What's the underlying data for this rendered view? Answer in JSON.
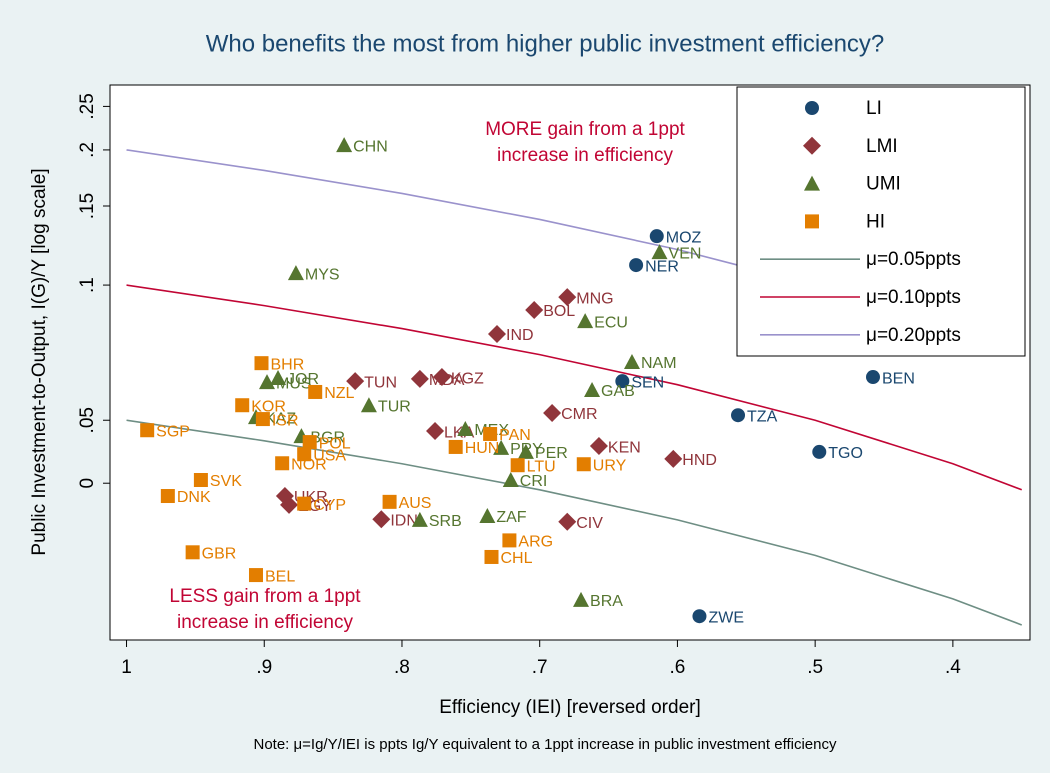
{
  "chart_data": {
    "type": "scatter",
    "title": "Who benefits the most from higher public investment efficiency?",
    "x_label": "Efficiency (IEI) [reversed order]",
    "y_label": "Public Investment-to-Output, I(G)/Y [log scale]",
    "note": "Note: μ=Ig/Y/IEI is ppts Ig/Y equivalent to a 1ppt increase in public investment efficiency",
    "annotations": [
      {
        "lines": [
          "MORE gain from a 1ppt",
          "increase in efficiency"
        ],
        "color": "#c10534"
      },
      {
        "lines": [
          "LESS gain from  a 1ppt",
          "increase in efficiency"
        ],
        "color": "#c10534"
      }
    ],
    "xlim": [
      1.012,
      0.344
    ],
    "xticks": [
      1,
      {
        "value": 0.9,
        "label": ".9"
      },
      {
        "value": 0.8,
        "label": ".8"
      },
      {
        "value": 0.7,
        "label": ".7"
      },
      {
        "value": 0.6,
        "label": ".6"
      },
      {
        "value": 0.5,
        "label": ".5"
      },
      {
        "value": 0.4,
        "label": ".4"
      }
    ],
    "ylim": [
      0.0162,
      0.279
    ],
    "yscale": "log",
    "yticks": [
      {
        "value": 0.0362,
        "label": "0"
      },
      {
        "value": 0.05,
        "label": ".05"
      },
      {
        "value": 0.1,
        "label": ".1"
      },
      {
        "value": 0.15,
        "label": ".15"
      },
      {
        "value": 0.2,
        "label": ".2"
      },
      {
        "value": 0.25,
        "label": ".25"
      }
    ],
    "grid": false,
    "legend": "top-right",
    "series": [
      {
        "name": "LI",
        "color": "#1a476f",
        "marker": "circle",
        "labels": [
          "MOZ",
          "NER",
          "SEN",
          "BEN",
          "TZA",
          "TGO",
          "ZWE"
        ],
        "x": [
          0.615,
          0.63,
          0.64,
          0.458,
          0.556,
          0.497,
          0.584
        ],
        "values": [
          0.1285,
          0.1108,
          0.0611,
          0.0624,
          0.0513,
          0.0425,
          0.0183
        ]
      },
      {
        "name": "LMI",
        "color": "#90353b",
        "marker": "diamond",
        "labels": [
          "MNG",
          "BOL",
          "IND",
          "TUN",
          "MDA",
          "KGZ",
          "CMR",
          "LKA",
          "KEN",
          "HND",
          "UKR",
          "EGY",
          "IDN",
          "CIV"
        ],
        "x": [
          0.68,
          0.704,
          0.731,
          0.834,
          0.787,
          0.771,
          0.691,
          0.776,
          0.657,
          0.603,
          0.885,
          0.882,
          0.815,
          0.68
        ],
        "values": [
          0.094,
          0.088,
          0.0778,
          0.0611,
          0.0618,
          0.0624,
          0.0519,
          0.0473,
          0.0438,
          0.041,
          0.0339,
          0.0324,
          0.0301,
          0.0297
        ]
      },
      {
        "name": "UMI",
        "color": "#55752f",
        "marker": "triangle",
        "labels": [
          "CHN",
          "MYS",
          "VEN",
          "ECU",
          "NAM",
          "GAB",
          "JOR",
          "MUS",
          "TUR",
          "KAZ",
          "BGR",
          "MEX",
          "PRY",
          "PER",
          "CRI",
          "ZAF",
          "SRB",
          "BRA"
        ],
        "x": [
          0.842,
          0.877,
          0.613,
          0.667,
          0.633,
          0.662,
          0.89,
          0.898,
          0.824,
          0.906,
          0.873,
          0.754,
          0.728,
          0.71,
          0.721,
          0.738,
          0.787,
          0.67
        ],
        "values": [
          0.205,
          0.1063,
          0.1184,
          0.0831,
          0.0674,
          0.0584,
          0.0621,
          0.0608,
          0.054,
          0.0508,
          0.0461,
          0.0478,
          0.0434,
          0.0425,
          0.0368,
          0.0306,
          0.03,
          0.0199
        ]
      },
      {
        "name": "HI",
        "color": "#e37e00",
        "marker": "square",
        "labels": [
          "BHR",
          "NZL",
          "KOR",
          "ISR",
          "SGP",
          "PAN",
          "POL",
          "HUN",
          "USA",
          "NOR",
          "LTU",
          "URY",
          "SVK",
          "DNK",
          "AUS",
          "CYP",
          "ARG",
          "CHL",
          "GBR",
          "BEL"
        ],
        "x": [
          0.902,
          0.863,
          0.916,
          0.901,
          0.985,
          0.736,
          0.867,
          0.761,
          0.871,
          0.887,
          0.716,
          0.668,
          0.946,
          0.97,
          0.809,
          0.871,
          0.722,
          0.735,
          0.952,
          0.906
        ],
        "values": [
          0.067,
          0.0578,
          0.054,
          0.0503,
          0.0475,
          0.0466,
          0.0447,
          0.0436,
          0.042,
          0.0401,
          0.0397,
          0.0399,
          0.0368,
          0.0339,
          0.0329,
          0.0326,
          0.027,
          0.0248,
          0.0254,
          0.0226
        ]
      },
      {
        "name": "μ=0.05ppts",
        "color": "#6e8e84",
        "marker": "line",
        "x": [
          1,
          0.9,
          0.8,
          0.7,
          0.6,
          0.5,
          0.4,
          0.35
        ],
        "values": [
          0.05,
          0.045,
          0.04,
          0.035,
          0.03,
          0.025,
          0.02,
          0.0175
        ]
      },
      {
        "name": "μ=0.10ppts",
        "color": "#c10534",
        "marker": "line",
        "x": [
          1,
          0.9,
          0.8,
          0.7,
          0.6,
          0.5,
          0.4,
          0.35
        ],
        "values": [
          0.1,
          0.09,
          0.08,
          0.07,
          0.06,
          0.05,
          0.04,
          0.035
        ]
      },
      {
        "name": "μ=0.20ppts",
        "color": "#9a92cc",
        "marker": "line",
        "x": [
          1,
          0.9,
          0.8,
          0.7,
          0.6,
          0.5,
          0.4,
          0.35
        ],
        "values": [
          0.2,
          0.18,
          0.16,
          0.14,
          0.12,
          0.1,
          0.08,
          0.07
        ]
      }
    ]
  }
}
